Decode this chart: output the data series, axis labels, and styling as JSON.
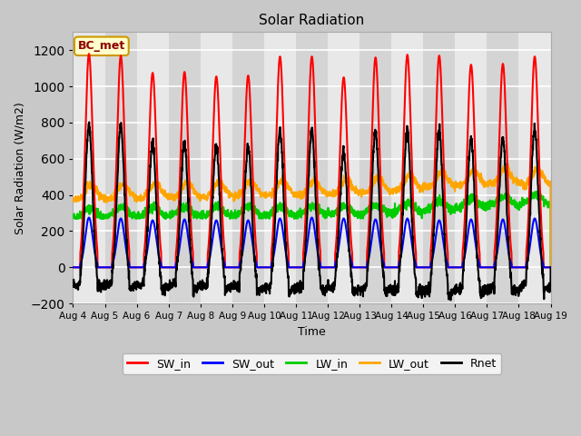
{
  "title": "Solar Radiation",
  "ylabel": "Solar Radiation (W/m2)",
  "xlabel": "Time",
  "n_days": 15,
  "ylim": [
    -200,
    1300
  ],
  "yticks": [
    -200,
    0,
    200,
    400,
    600,
    800,
    1000,
    1200
  ],
  "xtick_labels": [
    "Aug 4",
    "Aug 5",
    "Aug 6",
    "Aug 7",
    "Aug 8",
    "Aug 9",
    "Aug 10",
    "Aug 11",
    "Aug 12",
    "Aug 13",
    "Aug 14",
    "Aug 15",
    "Aug 16",
    "Aug 17",
    "Aug 18",
    "Aug 19"
  ],
  "colors": {
    "SW_in": "#ff0000",
    "SW_out": "#0000ff",
    "LW_in": "#00cc00",
    "LW_out": "#ffa500",
    "Rnet": "#000000"
  },
  "band_colors": [
    "#e8e8e8",
    "#d4d4d4"
  ],
  "legend_label": "BC_met",
  "legend_bg": "#ffffcc",
  "legend_border": "#cc9900",
  "fig_bg": "#c8c8c8",
  "SW_in_peaks": [
    1180,
    1170,
    1075,
    1080,
    1055,
    1060,
    1165,
    1165,
    1050,
    1160,
    1175,
    1170,
    1120,
    1125,
    1165
  ],
  "SW_out_peaks": [
    275,
    270,
    260,
    265,
    260,
    260,
    270,
    275,
    270,
    265,
    270,
    260,
    265,
    265,
    270
  ],
  "LW_in_base": [
    300,
    305,
    305,
    308,
    308,
    310,
    310,
    315,
    315,
    320,
    330,
    340,
    355,
    370,
    375
  ],
  "LW_out_base": [
    375,
    380,
    385,
    385,
    390,
    395,
    400,
    400,
    405,
    415,
    430,
    445,
    455,
    465,
    460
  ]
}
